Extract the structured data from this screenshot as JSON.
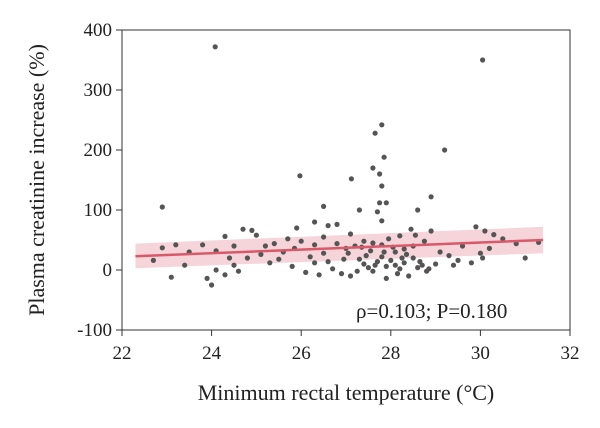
{
  "chart_data": {
    "type": "scatter",
    "title": "",
    "xlabel": "Minimum rectal temperature (°C)",
    "ylabel": "Plasma creatinine increase (%)",
    "xlim": [
      22,
      32
    ],
    "ylim": [
      -100,
      400
    ],
    "xticks": [
      "22",
      "24",
      "26",
      "28",
      "30",
      "32"
    ],
    "yticks": [
      "400",
      "300",
      "200",
      "100",
      "0",
      "-100"
    ],
    "annotation": "ρ=0.103; P=0.180",
    "grid": false,
    "colors": {
      "points": "#555555",
      "fit_line": "#d9596b",
      "ci_band": "#f2c6cd"
    },
    "fit": {
      "x": [
        22.3,
        31.4
      ],
      "y": [
        23,
        50
      ]
    },
    "ci_band": {
      "x": [
        22.3,
        31.4
      ],
      "upper": [
        44,
        72
      ],
      "lower": [
        3,
        28
      ]
    },
    "points": [
      [
        24.08,
        372
      ],
      [
        30.05,
        350
      ],
      [
        27.8,
        242
      ],
      [
        27.65,
        228
      ],
      [
        29.2,
        200
      ],
      [
        27.85,
        188
      ],
      [
        27.6,
        170
      ],
      [
        27.75,
        160
      ],
      [
        25.97,
        157
      ],
      [
        27.12,
        152
      ],
      [
        27.8,
        140
      ],
      [
        28.9,
        122
      ],
      [
        22.9,
        105
      ],
      [
        26.5,
        106
      ],
      [
        27.75,
        112
      ],
      [
        27.9,
        112
      ],
      [
        27.7,
        97
      ],
      [
        27.8,
        82
      ],
      [
        27.3,
        100
      ],
      [
        28.6,
        100
      ],
      [
        26.3,
        80
      ],
      [
        25.9,
        70
      ],
      [
        26.6,
        74
      ],
      [
        26.8,
        76
      ],
      [
        28.9,
        65
      ],
      [
        29.9,
        72
      ],
      [
        30.1,
        65
      ],
      [
        30.3,
        59
      ],
      [
        27.1,
        60
      ],
      [
        27.95,
        52
      ],
      [
        28.2,
        57
      ],
      [
        28.45,
        68
      ],
      [
        28.75,
        48
      ],
      [
        28.5,
        40
      ],
      [
        28.3,
        35
      ],
      [
        28.1,
        30
      ],
      [
        27.8,
        42
      ],
      [
        27.6,
        45
      ],
      [
        27.4,
        48
      ],
      [
        27.2,
        40
      ],
      [
        27.0,
        36
      ],
      [
        26.8,
        44
      ],
      [
        26.5,
        55
      ],
      [
        26.3,
        42
      ],
      [
        26.0,
        48
      ],
      [
        25.7,
        52
      ],
      [
        25.4,
        44
      ],
      [
        25.0,
        58
      ],
      [
        24.9,
        66
      ],
      [
        24.7,
        68
      ],
      [
        24.5,
        40
      ],
      [
        24.3,
        56
      ],
      [
        24.1,
        32
      ],
      [
        23.8,
        42
      ],
      [
        23.2,
        42
      ],
      [
        22.9,
        37
      ],
      [
        22.7,
        16
      ],
      [
        23.1,
        -12
      ],
      [
        23.9,
        -14
      ],
      [
        24.0,
        -25
      ],
      [
        24.1,
        0
      ],
      [
        24.3,
        -8
      ],
      [
        24.5,
        8
      ],
      [
        24.8,
        20
      ],
      [
        25.1,
        26
      ],
      [
        25.3,
        12
      ],
      [
        25.5,
        18
      ],
      [
        25.8,
        6
      ],
      [
        26.1,
        -4
      ],
      [
        26.3,
        12
      ],
      [
        26.5,
        28
      ],
      [
        26.7,
        2
      ],
      [
        26.9,
        -6
      ],
      [
        27.1,
        -10
      ],
      [
        27.3,
        18
      ],
      [
        27.4,
        10
      ],
      [
        27.5,
        4
      ],
      [
        27.6,
        -2
      ],
      [
        27.7,
        14
      ],
      [
        27.8,
        22
      ],
      [
        27.9,
        6
      ],
      [
        28.0,
        16
      ],
      [
        28.1,
        8
      ],
      [
        28.2,
        2
      ],
      [
        28.3,
        12
      ],
      [
        28.4,
        -10
      ],
      [
        28.5,
        20
      ],
      [
        28.6,
        4
      ],
      [
        28.7,
        8
      ],
      [
        28.8,
        -2
      ],
      [
        29.0,
        10
      ],
      [
        29.3,
        24
      ],
      [
        29.5,
        16
      ],
      [
        29.8,
        12
      ],
      [
        30.0,
        28
      ],
      [
        30.2,
        36
      ],
      [
        30.5,
        52
      ],
      [
        30.8,
        44
      ],
      [
        31.0,
        20
      ],
      [
        24.6,
        -2
      ],
      [
        25.6,
        30
      ],
      [
        26.2,
        22
      ],
      [
        26.6,
        14
      ],
      [
        27.05,
        28
      ],
      [
        27.55,
        32
      ],
      [
        27.9,
        -14
      ],
      [
        28.05,
        38
      ],
      [
        28.25,
        20
      ],
      [
        28.85,
        2
      ],
      [
        29.1,
        30
      ],
      [
        24.4,
        20
      ],
      [
        25.2,
        40
      ],
      [
        26.4,
        -8
      ],
      [
        27.25,
        -2
      ],
      [
        27.45,
        24
      ],
      [
        27.65,
        8
      ],
      [
        27.85,
        30
      ],
      [
        28.15,
        -6
      ],
      [
        28.35,
        26
      ],
      [
        28.65,
        14
      ],
      [
        29.4,
        8
      ],
      [
        30.05,
        20
      ],
      [
        25.85,
        36
      ],
      [
        26.95,
        18
      ],
      [
        27.35,
        38
      ],
      [
        23.5,
        30
      ],
      [
        23.4,
        8
      ],
      [
        29.6,
        40
      ],
      [
        31.3,
        46
      ],
      [
        28.55,
        58
      ]
    ]
  }
}
